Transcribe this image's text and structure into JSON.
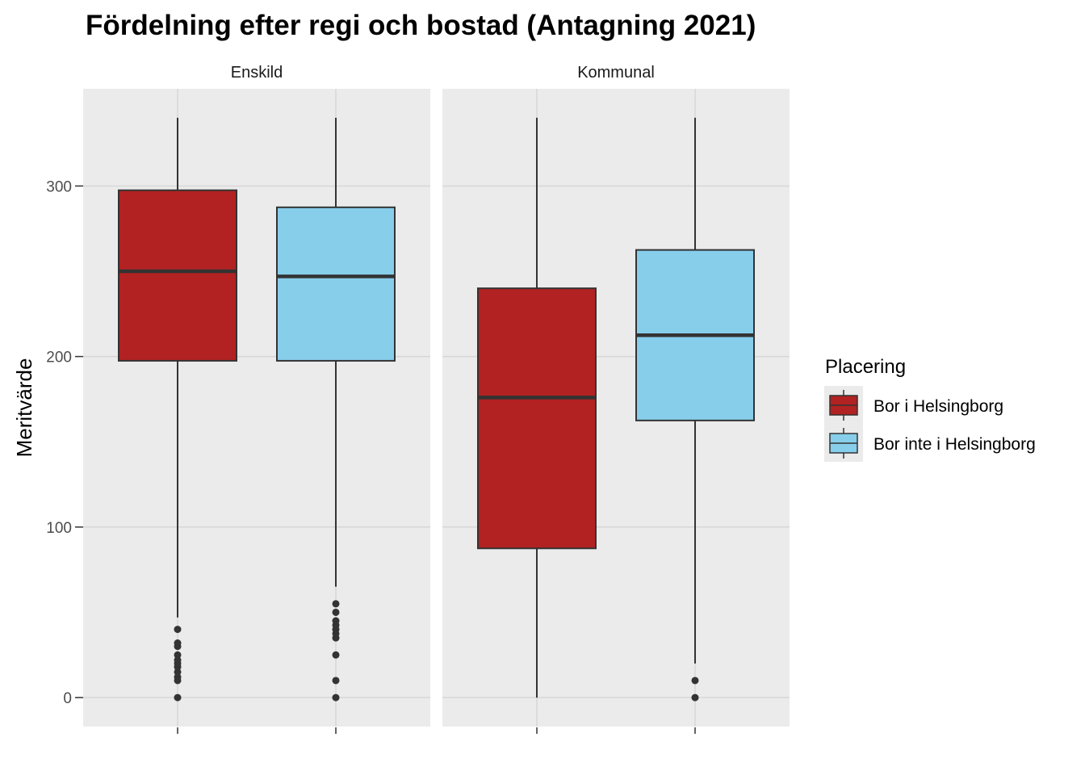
{
  "chart_data": {
    "type": "boxplot",
    "title": "Fördelning efter regi och bostad (Antagning 2021)",
    "ylabel": "Meritvärde",
    "xlabel": "",
    "ylim": [
      -17,
      357
    ],
    "yticks": [
      0,
      100,
      200,
      300
    ],
    "grid": true,
    "legend": {
      "title": "Placering",
      "position": "right",
      "entries": [
        {
          "label": "Bor i Helsingborg",
          "color": "#B22222"
        },
        {
          "label": "Bor inte i Helsingborg",
          "color": "#87CEEB"
        }
      ]
    },
    "facets": [
      {
        "label": "Enskild",
        "boxes": [
          {
            "group": "Bor i Helsingborg",
            "color": "#B22222",
            "min": 47,
            "q1": 197.5,
            "median": 250,
            "q3": 297.5,
            "max": 340,
            "outliers": [
              0,
              10,
              12,
              15,
              18,
              20,
              22,
              25,
              30,
              32,
              40
            ]
          },
          {
            "group": "Bor inte i Helsingborg",
            "color": "#87CEEB",
            "min": 65,
            "q1": 197.5,
            "median": 247,
            "q3": 287.5,
            "max": 340,
            "outliers": [
              0,
              10,
              25,
              35,
              37.5,
              40,
              42.5,
              45,
              50,
              55
            ]
          }
        ]
      },
      {
        "label": "Kommunal",
        "boxes": [
          {
            "group": "Bor i Helsingborg",
            "color": "#B22222",
            "min": 0,
            "q1": 87.5,
            "median": 176,
            "q3": 240,
            "max": 340,
            "outliers": []
          },
          {
            "group": "Bor inte i Helsingborg",
            "color": "#87CEEB",
            "min": 20,
            "q1": 162.5,
            "median": 212.5,
            "q3": 262.5,
            "max": 340,
            "outliers": [
              0,
              10
            ]
          }
        ]
      }
    ],
    "colors": {
      "panel_bg": "#EBEBEB",
      "grid": "#FFFFFF",
      "box_line": "#333333"
    }
  }
}
